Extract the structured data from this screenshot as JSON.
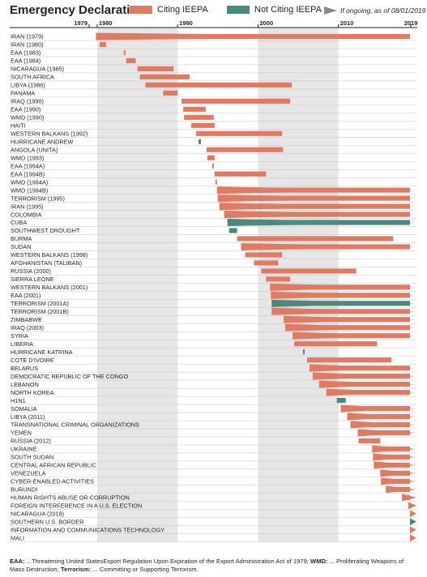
{
  "title": "Emergency Declarations",
  "legend": {
    "citing": "Citing IEEPA",
    "not_citing": "Not Citing IEEPA",
    "ongoing": "If ongoing, as of 08/01/2019"
  },
  "colors": {
    "citing": "#e07b63",
    "not_citing": "#4a8a7c",
    "ongoing": "#8a8a8a",
    "shade": "#e6e6e6"
  },
  "chart_data": {
    "type": "bar",
    "subtype": "horizontal-timeline",
    "x_ticks": [
      "1979",
      "1980",
      "1990",
      "2000",
      "2010",
      "2019"
    ],
    "xlim": [
      1979,
      2019.6
    ],
    "shaded_decades": [
      [
        1980,
        1990
      ],
      [
        2000,
        2010
      ]
    ],
    "rows": [
      {
        "label": "IRAN (1979)",
        "start": 1979.85,
        "end": 2019.6,
        "ieepa": true,
        "ongoing": true
      },
      {
        "label": "IRAN (1980)",
        "start": 1980.3,
        "end": 1981.1,
        "ieepa": true,
        "ongoing": false
      },
      {
        "label": "EAA (1983)",
        "start": 1983.3,
        "end": 1983.5,
        "ieepa": true,
        "ongoing": false
      },
      {
        "label": "EAA (1984)",
        "start": 1983.6,
        "end": 1984.8,
        "ieepa": true,
        "ongoing": false
      },
      {
        "label": "NICARAGUA (1985)",
        "start": 1985.0,
        "end": 1989.5,
        "ieepa": true,
        "ongoing": false
      },
      {
        "label": "SOUTH AFRICA",
        "start": 1985.3,
        "end": 1991.5,
        "ieepa": true,
        "ongoing": false
      },
      {
        "label": "LIBYA (1986)",
        "start": 1986.0,
        "end": 2004.2,
        "ieepa": true,
        "ongoing": false
      },
      {
        "label": "PANAMA",
        "start": 1988.2,
        "end": 1990.0,
        "ieepa": true,
        "ongoing": false
      },
      {
        "label": "IRAQ (1990)",
        "start": 1990.5,
        "end": 2004.0,
        "ieepa": true,
        "ongoing": false
      },
      {
        "label": "EAA (1990)",
        "start": 1990.7,
        "end": 1993.5,
        "ieepa": true,
        "ongoing": false
      },
      {
        "label": "WMD (1990)",
        "start": 1990.8,
        "end": 1994.5,
        "ieepa": true,
        "ongoing": false
      },
      {
        "label": "HAITI",
        "start": 1991.7,
        "end": 1994.6,
        "ieepa": true,
        "ongoing": false
      },
      {
        "label": "WESTERN BALKANS (1992)",
        "start": 1992.3,
        "end": 2003.0,
        "ieepa": true,
        "ongoing": false
      },
      {
        "label": "HURRICANE ANDREW",
        "start": 1992.6,
        "end": 1992.9,
        "ieepa": false,
        "ongoing": false
      },
      {
        "label": "ANGOLA (UNITA)",
        "start": 1993.6,
        "end": 2003.1,
        "ieepa": true,
        "ongoing": false
      },
      {
        "label": "WMD (1993)",
        "start": 1993.7,
        "end": 1994.6,
        "ieepa": true,
        "ongoing": false
      },
      {
        "label": "EAA (1994A)",
        "start": 1994.3,
        "end": 1994.5,
        "ieepa": true,
        "ongoing": false
      },
      {
        "label": "EAA (1994B)",
        "start": 1994.6,
        "end": 2001.0,
        "ieepa": true,
        "ongoing": false
      },
      {
        "label": "WMD (1994A)",
        "start": 1994.7,
        "end": 1994.9,
        "ieepa": true,
        "ongoing": false
      },
      {
        "label": "WMD (1994B)",
        "start": 1994.9,
        "end": 2019.6,
        "ieepa": true,
        "ongoing": true
      },
      {
        "label": "TERRORISM (1995)",
        "start": 1995.0,
        "end": 2019.6,
        "ieepa": true,
        "ongoing": true
      },
      {
        "label": "IRAN (1995)",
        "start": 1995.2,
        "end": 2019.6,
        "ieepa": true,
        "ongoing": true
      },
      {
        "label": "COLOMBIA",
        "start": 1995.8,
        "end": 2019.6,
        "ieepa": true,
        "ongoing": true
      },
      {
        "label": "CUBA",
        "start": 1996.2,
        "end": 2019.6,
        "ieepa": false,
        "ongoing": true
      },
      {
        "label": "SOUTHWEST DROUGHT",
        "start": 1996.4,
        "end": 1997.4,
        "ieepa": false,
        "ongoing": false
      },
      {
        "label": "BURMA",
        "start": 1997.4,
        "end": 2016.8,
        "ieepa": true,
        "ongoing": false
      },
      {
        "label": "SUDAN",
        "start": 1997.9,
        "end": 2019.6,
        "ieepa": true,
        "ongoing": true
      },
      {
        "label": "WESTERN BALKANS (1998)",
        "start": 1998.4,
        "end": 2003.0,
        "ieepa": true,
        "ongoing": false
      },
      {
        "label": "AFGHANISTAN (TALIBAN)",
        "start": 1999.5,
        "end": 2002.5,
        "ieepa": true,
        "ongoing": false
      },
      {
        "label": "RUSSIA (2000)",
        "start": 2000.4,
        "end": 2012.2,
        "ieepa": true,
        "ongoing": false
      },
      {
        "label": "SIERRA LEONE",
        "start": 2001.0,
        "end": 2004.0,
        "ieepa": true,
        "ongoing": false
      },
      {
        "label": "WESTERN BALKANS (2001)",
        "start": 2001.5,
        "end": 2019.6,
        "ieepa": true,
        "ongoing": true
      },
      {
        "label": "EAA (2001)",
        "start": 2001.6,
        "end": 2019.6,
        "ieepa": true,
        "ongoing": true
      },
      {
        "label": "TERRORISM (2001A)",
        "start": 2001.7,
        "end": 2019.6,
        "ieepa": false,
        "ongoing": true
      },
      {
        "label": "TERRORISM (2001B)",
        "start": 2001.7,
        "end": 2019.6,
        "ieepa": true,
        "ongoing": true
      },
      {
        "label": "ZIMBABWE",
        "start": 2003.2,
        "end": 2019.6,
        "ieepa": true,
        "ongoing": true
      },
      {
        "label": "IRAQ (2003)",
        "start": 2003.4,
        "end": 2019.6,
        "ieepa": true,
        "ongoing": true
      },
      {
        "label": "SYRIA",
        "start": 2004.3,
        "end": 2019.6,
        "ieepa": true,
        "ongoing": true
      },
      {
        "label": "LIBERIA",
        "start": 2004.5,
        "end": 2014.8,
        "ieepa": true,
        "ongoing": false
      },
      {
        "label": "HURRICANE KATRINA",
        "start": 2005.6,
        "end": 2005.8,
        "ieepa": false,
        "ongoing": false
      },
      {
        "label": "COTE D'IVOIRE",
        "start": 2006.1,
        "end": 2016.6,
        "ieepa": true,
        "ongoing": false
      },
      {
        "label": "BELARUS",
        "start": 2006.4,
        "end": 2019.6,
        "ieepa": true,
        "ongoing": true
      },
      {
        "label": "DEMOCRATIC REPUBLIC OF THE CONGO",
        "start": 2006.8,
        "end": 2019.6,
        "ieepa": true,
        "ongoing": true
      },
      {
        "label": "LEBANON",
        "start": 2007.6,
        "end": 2019.6,
        "ieepa": true,
        "ongoing": true
      },
      {
        "label": "NORTH KOREA",
        "start": 2008.5,
        "end": 2019.6,
        "ieepa": true,
        "ongoing": true
      },
      {
        "label": "H1N1",
        "start": 2009.8,
        "end": 2010.9,
        "ieepa": false,
        "ongoing": false
      },
      {
        "label": "SOMALIA",
        "start": 2010.3,
        "end": 2019.6,
        "ieepa": true,
        "ongoing": true
      },
      {
        "label": "LIBYA (2011)",
        "start": 2011.1,
        "end": 2019.6,
        "ieepa": true,
        "ongoing": true
      },
      {
        "label": "TRANSNATIONAL CRIMINAL ORGANIZATIONS",
        "start": 2011.5,
        "end": 2019.6,
        "ieepa": true,
        "ongoing": true
      },
      {
        "label": "YEMEN",
        "start": 2012.4,
        "end": 2019.6,
        "ieepa": true,
        "ongoing": true
      },
      {
        "label": "RUSSIA (2012)",
        "start": 2012.5,
        "end": 2015.2,
        "ieepa": true,
        "ongoing": false
      },
      {
        "label": "UKRAINE",
        "start": 2014.2,
        "end": 2019.6,
        "ieepa": true,
        "ongoing": true
      },
      {
        "label": "SOUTH SUDAN",
        "start": 2014.3,
        "end": 2019.6,
        "ieepa": true,
        "ongoing": true
      },
      {
        "label": "CENTRAL AFRICAN REPUBLIC",
        "start": 2014.4,
        "end": 2019.6,
        "ieepa": true,
        "ongoing": true
      },
      {
        "label": "VENEZUELA",
        "start": 2015.2,
        "end": 2019.6,
        "ieepa": true,
        "ongoing": true
      },
      {
        "label": "CYBER-ENABLED ACTIVITIES",
        "start": 2015.3,
        "end": 2019.6,
        "ieepa": true,
        "ongoing": true
      },
      {
        "label": "BURUNDI",
        "start": 2015.9,
        "end": 2019.6,
        "ieepa": true,
        "ongoing": true
      },
      {
        "label": "HUMAN RIGHTS ABUSE OR CORRUPTION",
        "start": 2017.9,
        "end": 2019.6,
        "ieepa": true,
        "ongoing": true
      },
      {
        "label": "FOREIGN INTERFERENCE IN A U.S. ELECTION",
        "start": 2018.7,
        "end": 2019.6,
        "ieepa": true,
        "ongoing": true
      },
      {
        "label": "NICARAGUA (2018)",
        "start": 2018.9,
        "end": 2019.6,
        "ieepa": true,
        "ongoing": true
      },
      {
        "label": "SOUTHERN U.S. BORDER",
        "start": 2019.1,
        "end": 2019.6,
        "ieepa": false,
        "ongoing": true
      },
      {
        "label": "INFORMATION AND COMMUNICATIONS TECHNOLOGY",
        "start": 2019.4,
        "end": 2019.6,
        "ieepa": true,
        "ongoing": true
      },
      {
        "label": "MALI",
        "start": 2019.5,
        "end": 2019.6,
        "ieepa": true,
        "ongoing": true
      }
    ]
  },
  "footnote": {
    "eaa_term": "EAA:",
    "eaa_text": " ...Threatening United StatesExport Regulation Upon Expiration of the Export Administration Act of 1979; ",
    "wmd_term": "WMD:",
    "wmd_text": " ... Proliferating Weapons of Mass Destruction; ",
    "terror_term": "Terrorism:",
    "terror_text": " ... Committing or Supporting Terrorism."
  }
}
